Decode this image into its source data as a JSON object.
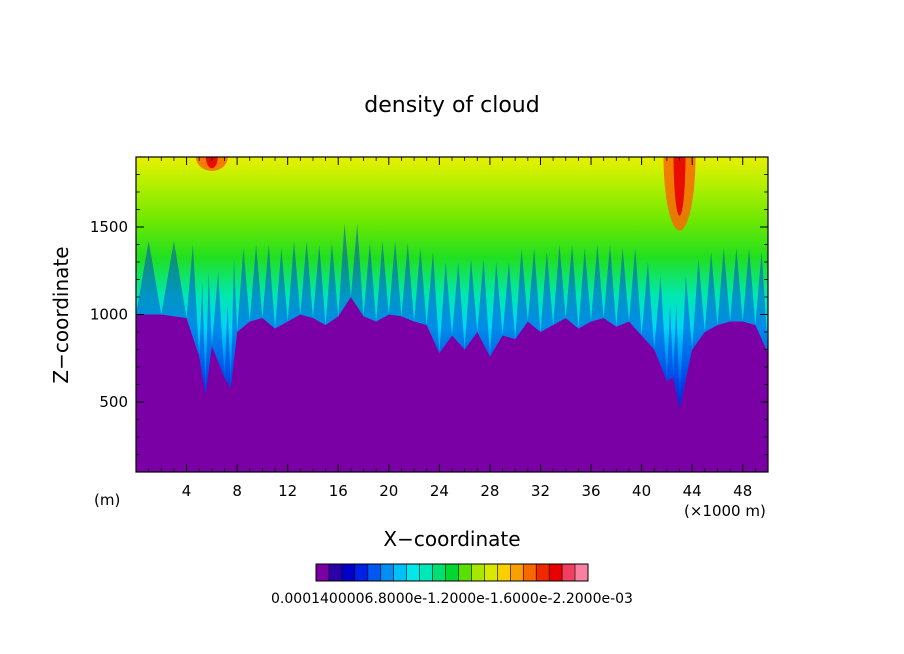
{
  "chart_data": {
    "type": "heatmap",
    "title": "density of cloud",
    "xlabel": "X−coordinate",
    "ylabel": "Z−coordinate",
    "x_unit_left": "(m)",
    "x_unit_right": "(×1000 m)",
    "xlim": [
      0,
      50
    ],
    "ylim": [
      100,
      1900
    ],
    "x_ticks": [
      4,
      8,
      12,
      16,
      20,
      24,
      28,
      32,
      36,
      40,
      44,
      48
    ],
    "x_tick_labels": [
      "4",
      "8",
      "12",
      "16",
      "20",
      "24",
      "28",
      "32",
      "36",
      "40",
      "44",
      "48"
    ],
    "y_ticks": [
      500,
      1000,
      1500
    ],
    "y_tick_labels": [
      "500",
      "1000",
      "1500"
    ],
    "colorbar_labels_text": "0.0001400006.8000e-1.2000e-1.6000e-2.2000e-03",
    "colorbar_colors": [
      "#7a00a6",
      "#2a00a8",
      "#0000c8",
      "#0022e6",
      "#0058f0",
      "#0090f4",
      "#00c0f8",
      "#00e8e8",
      "#00e8b8",
      "#00e070",
      "#00d830",
      "#58e000",
      "#a8e800",
      "#d8e800",
      "#f8d000",
      "#f8a000",
      "#f86800",
      "#f02800",
      "#e80000",
      "#f04060",
      "#f880a0"
    ],
    "cloud_base_profile": {
      "x": [
        0,
        2,
        4,
        5,
        5.5,
        6,
        7,
        7.5,
        8,
        9,
        10,
        11,
        12,
        13,
        14,
        15,
        16,
        17,
        18,
        19,
        20,
        21,
        22,
        23,
        24,
        25,
        26,
        27,
        28,
        29,
        30,
        31,
        32,
        33,
        34,
        35,
        36,
        37,
        38,
        39,
        40,
        41,
        42,
        42.5,
        43,
        44,
        45,
        46,
        47,
        48,
        49,
        50
      ],
      "z": [
        1000,
        1000,
        980,
        760,
        540,
        820,
        640,
        580,
        900,
        960,
        980,
        920,
        960,
        1000,
        980,
        940,
        990,
        1100,
        990,
        960,
        1000,
        990,
        960,
        940,
        780,
        880,
        800,
        900,
        760,
        880,
        860,
        960,
        900,
        940,
        980,
        920,
        960,
        980,
        930,
        960,
        880,
        800,
        620,
        640,
        460,
        800,
        900,
        940,
        960,
        960,
        940,
        780
      ]
    },
    "top_hot_spots": [
      {
        "x": 6,
        "z_bottom": 1820,
        "intensity": "high"
      },
      {
        "x": 43,
        "z_bottom": 1480,
        "intensity": "high"
      }
    ]
  }
}
